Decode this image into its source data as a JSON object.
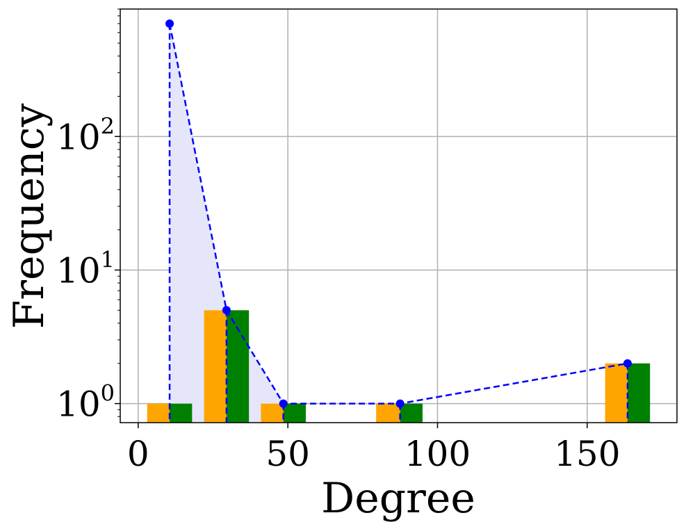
{
  "chart_data": {
    "type": "bar",
    "xlabel": "Degree",
    "ylabel": "Frequency",
    "yscale": "log",
    "xlim": [
      -6,
      180
    ],
    "ylim": [
      0.72,
      900
    ],
    "grid": true,
    "xticks": [
      {
        "value": 0,
        "label": "0"
      },
      {
        "value": 50,
        "label": "50"
      },
      {
        "value": 100,
        "label": "100"
      },
      {
        "value": 150,
        "label": "150"
      }
    ],
    "yticks": [
      {
        "value": 1,
        "base": "10",
        "exp": "0"
      },
      {
        "value": 10,
        "base": "10",
        "exp": "1"
      },
      {
        "value": 100,
        "base": "10",
        "exp": "2"
      }
    ],
    "series": [
      {
        "type": "bar",
        "color": "#FFA500",
        "bars": [
          {
            "x0": 3,
            "x1": 10.5,
            "value": 1
          },
          {
            "x0": 22,
            "x1": 29.5,
            "value": 5
          },
          {
            "x0": 41,
            "x1": 48.5,
            "value": 1
          },
          {
            "x0": 79.5,
            "x1": 87.5,
            "value": 1
          },
          {
            "x0": 156,
            "x1": 163.5,
            "value": 2
          }
        ]
      },
      {
        "type": "bar",
        "color": "#008000",
        "bars": [
          {
            "x0": 10.5,
            "x1": 18,
            "value": 1
          },
          {
            "x0": 29.5,
            "x1": 37,
            "value": 5
          },
          {
            "x0": 48.5,
            "x1": 56,
            "value": 1
          },
          {
            "x0": 87.5,
            "x1": 95,
            "value": 1
          },
          {
            "x0": 163.5,
            "x1": 171,
            "value": 2
          }
        ]
      },
      {
        "type": "line",
        "color": "#0000FF",
        "linestyle": "dashed",
        "fill": "#E6E6FA",
        "fill_x": [
          10.5,
          48.5
        ],
        "stems": true,
        "points": [
          {
            "x": 10.5,
            "y": 700
          },
          {
            "x": 29.5,
            "y": 5
          },
          {
            "x": 48.5,
            "y": 1
          },
          {
            "x": 87.5,
            "y": 1
          },
          {
            "x": 163.5,
            "y": 2
          }
        ]
      }
    ]
  }
}
